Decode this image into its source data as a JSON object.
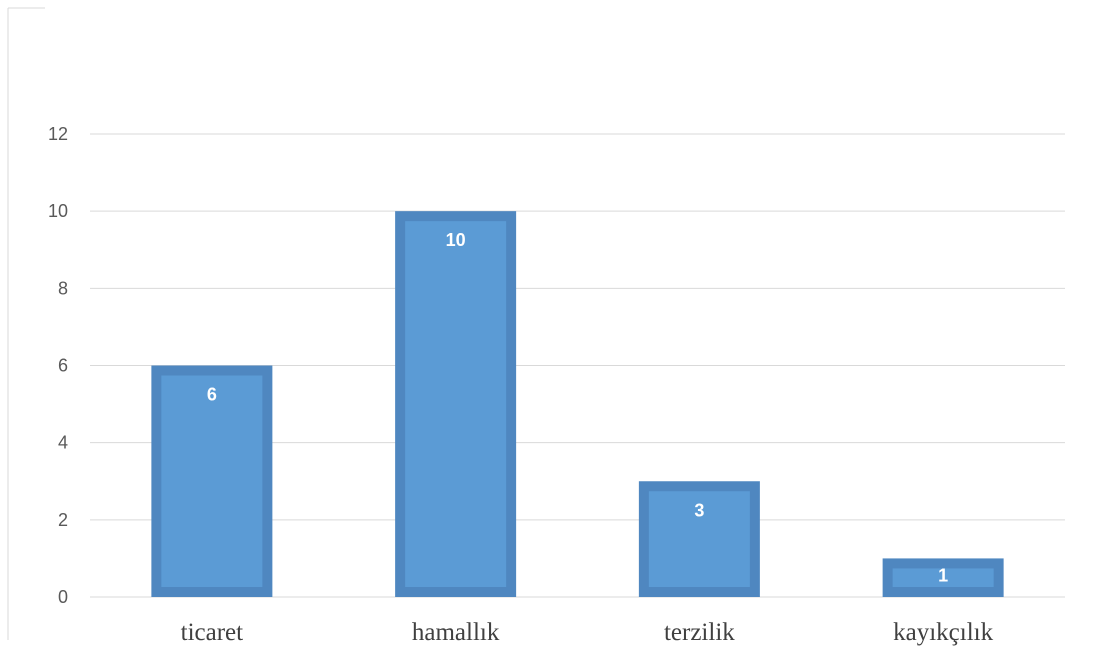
{
  "chart_data": {
    "type": "bar",
    "title": "",
    "xlabel": "",
    "ylabel": "",
    "categories": [
      "ticaret",
      "hamallık",
      "terzilik",
      "kayıkçılık"
    ],
    "values": [
      6,
      10,
      3,
      1
    ],
    "data_labels": [
      "6",
      "10",
      "3",
      "1"
    ],
    "ylim": [
      0,
      12
    ],
    "yticks": [
      "0",
      "2",
      "4",
      "6",
      "8",
      "10",
      "12"
    ],
    "grid": true,
    "legend": "none",
    "colors": {
      "bar_fill": "#5b9bd5",
      "bar_border": "#4f87c0",
      "gridline": "#d9d9d9",
      "frame": "#d9d9d9"
    }
  }
}
